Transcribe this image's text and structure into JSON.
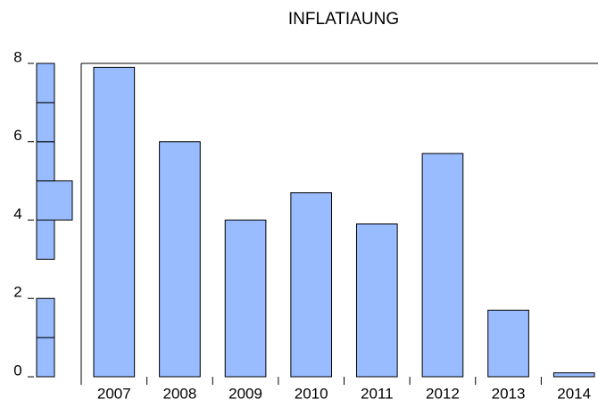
{
  "chart_data": [
    {
      "type": "bar",
      "title": "INFLATIAUNG",
      "categories": [
        "2007",
        "2008",
        "2009",
        "2010",
        "2011",
        "2012",
        "2013",
        "2014"
      ],
      "values": [
        7.9,
        6.0,
        4.0,
        4.7,
        3.9,
        5.7,
        1.7,
        0.1
      ],
      "color": "#99bbff",
      "ylim": [
        0,
        8
      ],
      "yticks": [
        0,
        2,
        4,
        6,
        8
      ]
    },
    {
      "type": "histogram",
      "orientation": "horizontal",
      "bins": [
        0,
        1,
        2,
        3,
        4,
        5,
        6,
        7,
        8
      ],
      "counts": [
        1,
        1,
        0,
        1,
        2,
        1,
        1,
        1
      ],
      "color": "#99bbff"
    }
  ]
}
